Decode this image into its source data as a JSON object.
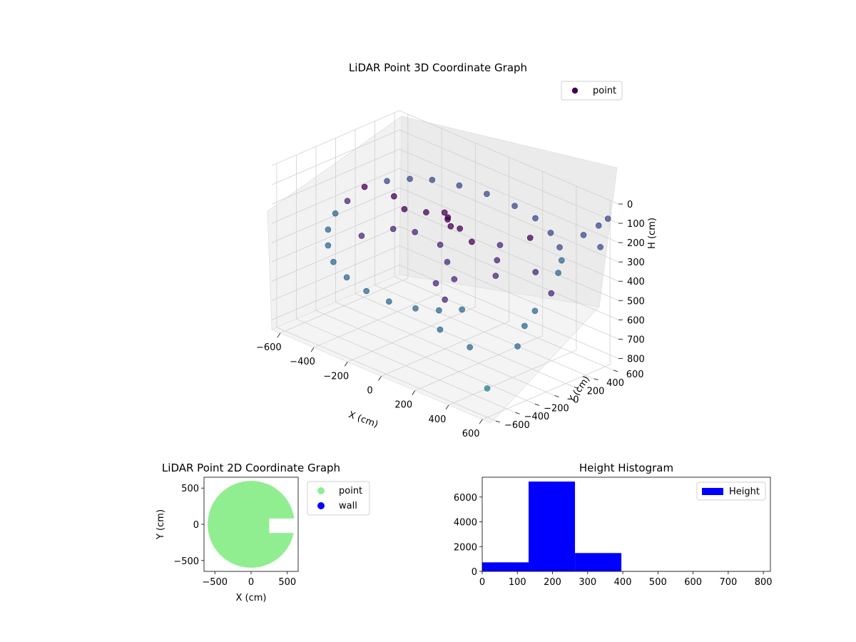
{
  "figure": {
    "charts": 3
  },
  "chart_data": [
    {
      "type": "scatter",
      "projection": "3d",
      "title": "LiDAR Point 3D Coordinate Graph",
      "xlabel": "X (cm)",
      "ylabel": "Y (cm)",
      "zlabel": "H (cm)",
      "xlim": [
        -650,
        650
      ],
      "ylim": [
        -650,
        650
      ],
      "zlim": [
        0,
        850
      ],
      "z_inverted": true,
      "xticks": [
        "−600",
        "−400",
        "−200",
        "0",
        "200",
        "400",
        "600"
      ],
      "yticks": [
        "−600",
        "−400",
        "−200",
        "0",
        "200",
        "400",
        "600"
      ],
      "zticks": [
        "0",
        "100",
        "200",
        "300",
        "400",
        "500",
        "600",
        "700",
        "800"
      ],
      "xtick_values": [
        -600,
        -400,
        -200,
        0,
        200,
        400,
        600
      ],
      "ytick_values": [
        -600,
        -400,
        -200,
        0,
        200,
        400,
        600
      ],
      "ztick_values": [
        0,
        100,
        200,
        300,
        400,
        500,
        600,
        700,
        800
      ],
      "grid": true,
      "legend": {
        "placement": "upper-right",
        "entries": [
          {
            "label": "point",
            "color": "#440154"
          }
        ]
      },
      "colormap": "viridis",
      "series": [
        {
          "name": "point",
          "points": [
            [
              -560,
              140,
              250
            ],
            [
              -520,
              300,
              240
            ],
            [
              -460,
              430,
              235
            ],
            [
              -380,
              520,
              230
            ],
            [
              -260,
              590,
              230
            ],
            [
              -120,
              630,
              230
            ],
            [
              40,
              640,
              235
            ],
            [
              180,
              610,
              240
            ],
            [
              300,
              560,
              260
            ],
            [
              400,
              480,
              280
            ],
            [
              470,
              380,
              300
            ],
            [
              -580,
              0,
              300
            ],
            [
              -570,
              -140,
              330
            ],
            [
              -520,
              -300,
              360
            ],
            [
              -450,
              -420,
              390
            ],
            [
              -360,
              -520,
              420
            ],
            [
              -240,
              -590,
              440
            ],
            [
              -100,
              -630,
              450
            ],
            [
              40,
              -640,
              450
            ],
            [
              180,
              -610,
              440
            ],
            [
              290,
              -560,
              420
            ],
            [
              380,
              -480,
              400
            ],
            [
              -300,
              100,
              260
            ],
            [
              -200,
              150,
              250
            ],
            [
              -100,
              200,
              250
            ],
            [
              0,
              150,
              260
            ],
            [
              100,
              100,
              280
            ],
            [
              -250,
              -100,
              300
            ],
            [
              -150,
              -50,
              290
            ],
            [
              0,
              -50,
              300
            ],
            [
              100,
              -150,
              330
            ],
            [
              200,
              -250,
              360
            ],
            [
              180,
              250,
              300
            ],
            [
              250,
              100,
              320
            ],
            [
              300,
              0,
              360
            ],
            [
              420,
              200,
              340
            ],
            [
              520,
              260,
              320
            ],
            [
              560,
              120,
              380
            ],
            [
              600,
              380,
              120
            ],
            [
              620,
              500,
              90
            ],
            [
              640,
              560,
              60
            ],
            [
              580,
              -80,
              420
            ],
            [
              600,
              -220,
              460
            ],
            [
              640,
              -360,
              520
            ],
            [
              450,
              -520,
              560
            ],
            [
              320,
              -600,
              500
            ],
            [
              -50,
              80,
              180
            ],
            [
              -20,
              60,
              200
            ],
            [
              10,
              40,
              220
            ],
            [
              120,
              -300,
              400
            ],
            [
              220,
              -380,
              430
            ],
            [
              560,
              620,
              250
            ],
            [
              600,
              -600,
              700
            ],
            [
              -420,
              200,
              260
            ],
            [
              -350,
              -250,
              340
            ],
            [
              260,
              420,
              270
            ]
          ]
        }
      ]
    },
    {
      "type": "scatter",
      "title": "LiDAR Point 2D Coordinate Graph",
      "xlabel": "X (cm)",
      "ylabel": "Y (cm)",
      "xlim": [
        -650,
        650
      ],
      "ylim": [
        -650,
        650
      ],
      "xticks": [
        "−500",
        "0",
        "500"
      ],
      "yticks": [
        "−500",
        "0",
        "500"
      ],
      "xtick_values": [
        -500,
        0,
        500
      ],
      "ytick_values": [
        -500,
        0,
        500
      ],
      "grid": false,
      "legend": {
        "placement": "outside-right",
        "entries": [
          {
            "label": "point",
            "color": "#90ee90"
          },
          {
            "label": "wall",
            "color": "#0000ff"
          }
        ]
      },
      "series": [
        {
          "name": "point",
          "color": "#90ee90",
          "shape": "disk-with-gap",
          "radius": 600,
          "gap_x_start": 250,
          "gap_y": [
            -120,
            80
          ]
        },
        {
          "name": "wall",
          "color": "#0000ff",
          "points": []
        }
      ]
    },
    {
      "type": "bar",
      "histogram": true,
      "title": "Height Histogram",
      "xlabel": "",
      "ylabel": "",
      "xlim": [
        0,
        820
      ],
      "ylim": [
        0,
        7600
      ],
      "xticks": [
        "0",
        "100",
        "200",
        "300",
        "400",
        "500",
        "600",
        "700",
        "800"
      ],
      "yticks": [
        "0",
        "2000",
        "4000",
        "6000"
      ],
      "xtick_values": [
        0,
        100,
        200,
        300,
        400,
        500,
        600,
        700,
        800
      ],
      "ytick_values": [
        0,
        2000,
        4000,
        6000
      ],
      "grid": false,
      "legend": {
        "placement": "upper-right",
        "entries": [
          {
            "label": "Height",
            "color": "#0000ff"
          }
        ]
      },
      "series": [
        {
          "name": "Height",
          "color": "#0000ff",
          "bins": [
            {
              "x0": 0,
              "x1": 132,
              "count": 730
            },
            {
              "x0": 132,
              "x1": 264,
              "count": 7250
            },
            {
              "x0": 264,
              "x1": 396,
              "count": 1480
            },
            {
              "x0": 396,
              "x1": 528,
              "count": 20
            },
            {
              "x0": 528,
              "x1": 660,
              "count": 15
            },
            {
              "x0": 660,
              "x1": 792,
              "count": 10
            }
          ]
        }
      ]
    }
  ]
}
